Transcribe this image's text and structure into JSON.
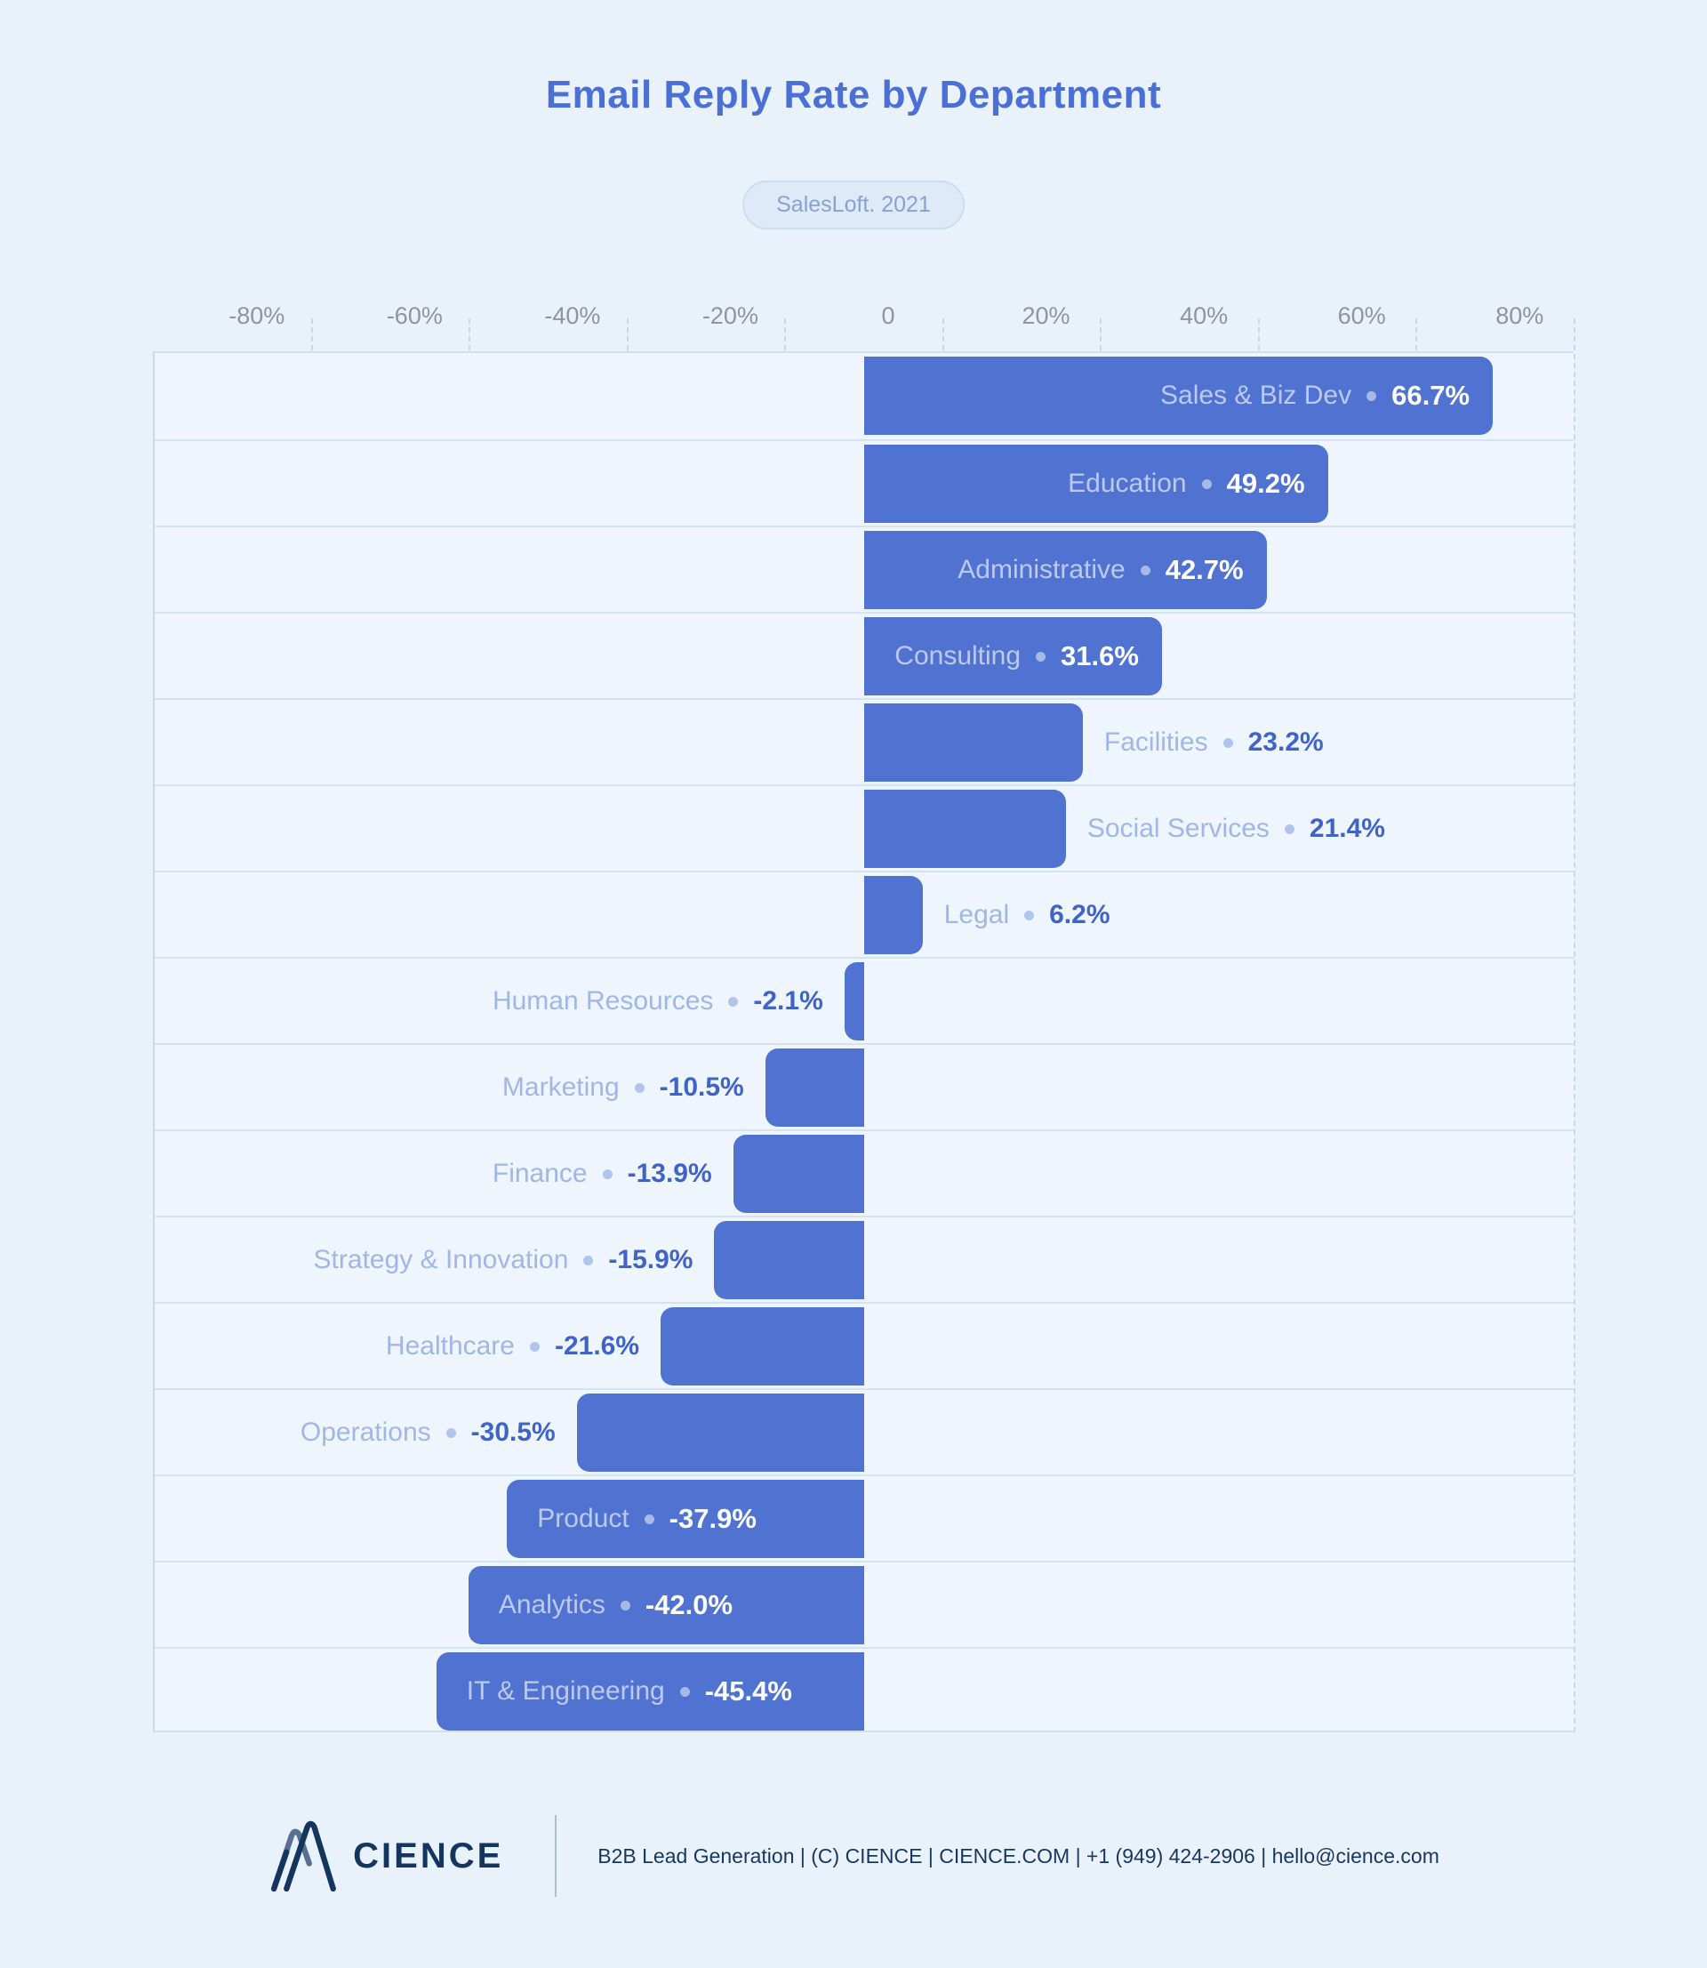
{
  "header": {
    "title": "Email Reply Rate by Department",
    "badge": "SalesLoft. 2021"
  },
  "chart_data": {
    "type": "bar",
    "orientation": "horizontal-diverging",
    "title": "Email Reply Rate by Department",
    "source_badge": "SalesLoft. 2021",
    "unit": "%",
    "xlim": [
      -90,
      90
    ],
    "grid": "dashed-vertical",
    "legend": "none",
    "x_ticks": [
      {
        "value": -80,
        "label": "-80%"
      },
      {
        "value": -60,
        "label": "-60%"
      },
      {
        "value": -40,
        "label": "-40%"
      },
      {
        "value": -20,
        "label": "-20%"
      },
      {
        "value": 0,
        "label": "0"
      },
      {
        "value": 20,
        "label": "20%"
      },
      {
        "value": 40,
        "label": "40%"
      },
      {
        "value": 60,
        "label": "60%"
      },
      {
        "value": 80,
        "label": "80%"
      }
    ],
    "gridlines_at": [
      -70,
      -50,
      -30,
      -10,
      10,
      30,
      50,
      70,
      90
    ],
    "categories": [
      "Sales & Biz Dev",
      "Education",
      "Administrative",
      "Consulting",
      "Facilities",
      "Social Services",
      "Legal",
      "Human Resources",
      "Marketing",
      "Finance",
      "Strategy & Innovation",
      "Healthcare",
      "Operations",
      "Product",
      "Analytics",
      "IT & Engineering"
    ],
    "values": [
      66.7,
      49.2,
      42.7,
      31.6,
      23.2,
      21.4,
      6.2,
      -2.1,
      -10.5,
      -13.9,
      -15.9,
      -21.6,
      -30.5,
      -37.9,
      -42.0,
      -45.4
    ],
    "bars": [
      {
        "label": "Sales & Biz Dev",
        "value": 66.7,
        "display": "66.7%",
        "label_placement": "inside"
      },
      {
        "label": "Education",
        "value": 49.2,
        "display": "49.2%",
        "label_placement": "inside"
      },
      {
        "label": "Administrative",
        "value": 42.7,
        "display": "42.7%",
        "label_placement": "inside"
      },
      {
        "label": "Consulting",
        "value": 31.6,
        "display": "31.6%",
        "label_placement": "inside"
      },
      {
        "label": "Facilities",
        "value": 23.2,
        "display": "23.2%",
        "label_placement": "outside"
      },
      {
        "label": "Social Services",
        "value": 21.4,
        "display": "21.4%",
        "label_placement": "outside"
      },
      {
        "label": "Legal",
        "value": 6.2,
        "display": "6.2%",
        "label_placement": "outside"
      },
      {
        "label": "Human Resources",
        "value": -2.1,
        "display": "-2.1%",
        "label_placement": "outside"
      },
      {
        "label": "Marketing",
        "value": -10.5,
        "display": "-10.5%",
        "label_placement": "outside"
      },
      {
        "label": "Finance",
        "value": -13.9,
        "display": "-13.9%",
        "label_placement": "outside"
      },
      {
        "label": "Strategy & Innovation",
        "value": -15.9,
        "display": "-15.9%",
        "label_placement": "outside"
      },
      {
        "label": "Healthcare",
        "value": -21.6,
        "display": "-21.6%",
        "label_placement": "outside"
      },
      {
        "label": "Operations",
        "value": -30.5,
        "display": "-30.5%",
        "label_placement": "outside"
      },
      {
        "label": "Product",
        "value": -37.9,
        "display": "-37.9%",
        "label_placement": "inside"
      },
      {
        "label": "Analytics",
        "value": -42.0,
        "display": "-42.0%",
        "label_placement": "inside"
      },
      {
        "label": "IT & Engineering",
        "value": -45.4,
        "display": "-45.4%",
        "label_placement": "inside"
      }
    ]
  },
  "footer": {
    "brand": "CIENCE",
    "info": "B2B Lead Generation | (C) CIENCE | CIENCE.COM | +1 (949) 424-2906 | hello@cience.com"
  },
  "colors": {
    "page_bg": "#e9f1fa",
    "plot_bg": "#eef5fd",
    "bar": "#5072d0",
    "title": "#4a6fd5",
    "value_text": "#3f63c9",
    "category_text": "#a0b6e6",
    "axis_label": "#8e959e",
    "gridline": "#c3d9ec",
    "footer_navy": "#14355e"
  }
}
